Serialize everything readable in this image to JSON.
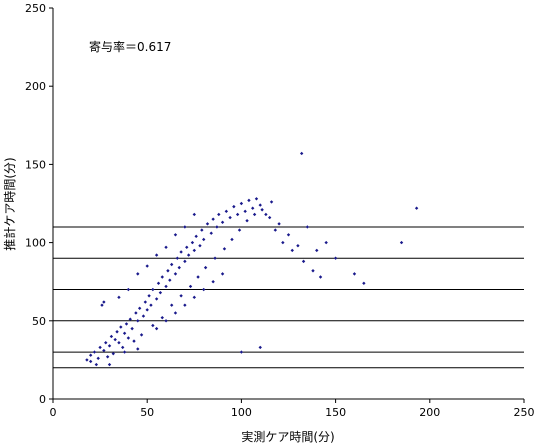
{
  "chart_data": {
    "type": "scatter",
    "title": "",
    "xlabel": "実測ケア時間(分)",
    "ylabel": "推計ケア時間(分)",
    "xlim": [
      0,
      250
    ],
    "ylim": [
      0,
      250
    ],
    "x_ticks": [
      "0",
      "50",
      "100",
      "150",
      "200",
      "250"
    ],
    "y_ticks": [
      "0",
      "50",
      "100",
      "150",
      "200",
      "250"
    ],
    "grid": false,
    "reference_lines_y": [
      20,
      30,
      50,
      70,
      90,
      110
    ],
    "annotation": "寄与率＝0.617",
    "marker_color": "#1a1a8c",
    "series": [
      {
        "points": [
          [
            18,
            25
          ],
          [
            20,
            28
          ],
          [
            22,
            30
          ],
          [
            24,
            26
          ],
          [
            25,
            33
          ],
          [
            27,
            31
          ],
          [
            28,
            36
          ],
          [
            30,
            34
          ],
          [
            31,
            40
          ],
          [
            33,
            38
          ],
          [
            34,
            43
          ],
          [
            35,
            36
          ],
          [
            36,
            46
          ],
          [
            38,
            42
          ],
          [
            39,
            48
          ],
          [
            40,
            39
          ],
          [
            41,
            51
          ],
          [
            42,
            45
          ],
          [
            44,
            55
          ],
          [
            45,
            50
          ],
          [
            46,
            58
          ],
          [
            48,
            53
          ],
          [
            49,
            62
          ],
          [
            50,
            57
          ],
          [
            51,
            66
          ],
          [
            52,
            60
          ],
          [
            53,
            70
          ],
          [
            55,
            64
          ],
          [
            56,
            74
          ],
          [
            57,
            68
          ],
          [
            58,
            78
          ],
          [
            60,
            72
          ],
          [
            61,
            82
          ],
          [
            62,
            76
          ],
          [
            63,
            86
          ],
          [
            65,
            80
          ],
          [
            66,
            90
          ],
          [
            67,
            84
          ],
          [
            68,
            94
          ],
          [
            70,
            88
          ],
          [
            71,
            97
          ],
          [
            72,
            92
          ],
          [
            74,
            100
          ],
          [
            75,
            95
          ],
          [
            76,
            104
          ],
          [
            78,
            98
          ],
          [
            79,
            108
          ],
          [
            80,
            102
          ],
          [
            82,
            112
          ],
          [
            84,
            106
          ],
          [
            85,
            115
          ],
          [
            87,
            110
          ],
          [
            88,
            118
          ],
          [
            90,
            113
          ],
          [
            92,
            120
          ],
          [
            94,
            116
          ],
          [
            96,
            123
          ],
          [
            98,
            118
          ],
          [
            100,
            125
          ],
          [
            102,
            120
          ],
          [
            104,
            127
          ],
          [
            106,
            122
          ],
          [
            108,
            128
          ],
          [
            110,
            124
          ],
          [
            113,
            118
          ],
          [
            116,
            126
          ],
          [
            120,
            112
          ],
          [
            125,
            105
          ],
          [
            130,
            98
          ],
          [
            135,
            110
          ],
          [
            140,
            95
          ],
          [
            145,
            100
          ],
          [
            150,
            90
          ],
          [
            160,
            80
          ],
          [
            165,
            74
          ],
          [
            185,
            100
          ],
          [
            193,
            122
          ],
          [
            132,
            157
          ],
          [
            27,
            62
          ],
          [
            26,
            60
          ],
          [
            35,
            65
          ],
          [
            40,
            70
          ],
          [
            45,
            80
          ],
          [
            50,
            85
          ],
          [
            55,
            92
          ],
          [
            60,
            97
          ],
          [
            65,
            105
          ],
          [
            70,
            110
          ],
          [
            75,
            118
          ],
          [
            55,
            45
          ],
          [
            60,
            50
          ],
          [
            65,
            55
          ],
          [
            70,
            60
          ],
          [
            75,
            65
          ],
          [
            80,
            70
          ],
          [
            85,
            75
          ],
          [
            90,
            80
          ],
          [
            30,
            22
          ],
          [
            38,
            30
          ],
          [
            45,
            32
          ],
          [
            20,
            24
          ],
          [
            23,
            22
          ],
          [
            29,
            27
          ],
          [
            32,
            29
          ],
          [
            37,
            33
          ],
          [
            43,
            37
          ],
          [
            47,
            41
          ],
          [
            53,
            47
          ],
          [
            58,
            52
          ],
          [
            63,
            60
          ],
          [
            68,
            66
          ],
          [
            73,
            72
          ],
          [
            77,
            78
          ],
          [
            81,
            84
          ],
          [
            86,
            90
          ],
          [
            91,
            96
          ],
          [
            95,
            102
          ],
          [
            99,
            108
          ],
          [
            103,
            114
          ],
          [
            107,
            118
          ],
          [
            111,
            121
          ],
          [
            115,
            116
          ],
          [
            118,
            108
          ],
          [
            122,
            100
          ],
          [
            127,
            95
          ],
          [
            133,
            88
          ],
          [
            138,
            82
          ],
          [
            142,
            78
          ],
          [
            100,
            30
          ],
          [
            110,
            33
          ]
        ]
      }
    ]
  }
}
